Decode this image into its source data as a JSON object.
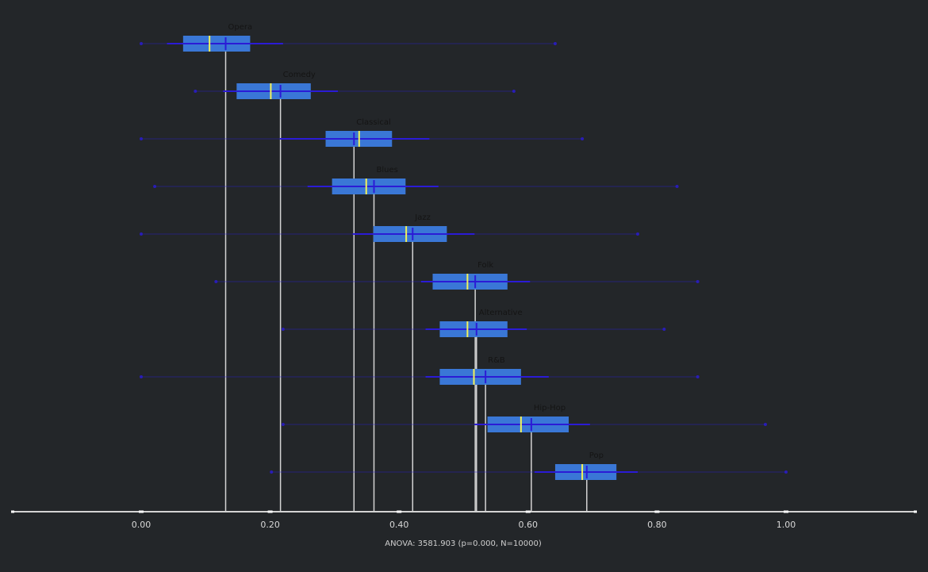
{
  "chart_data": {
    "type": "box",
    "footer_text": "ANOVA: 3581.903 (p=0.000, N=10000)",
    "xlim": [
      -0.2,
      1.2
    ],
    "xticks": [
      0.0,
      0.2,
      0.4,
      0.6,
      0.8,
      1.0
    ],
    "xtick_labels": [
      "0.00",
      "0.20",
      "0.40",
      "0.60",
      "0.80",
      "1.00"
    ],
    "grid": false,
    "colors": {
      "background": "#232629",
      "box": "#3a77d6",
      "median": "#f2f25a",
      "mean": "#2b1bd6",
      "whisker": "#2b1bd6",
      "mean_line": "#d4d4d4",
      "axis": "#d4d4d4"
    },
    "series": [
      {
        "name": "Opera",
        "min": 0.0,
        "max": 0.642,
        "q1": 0.065,
        "median": 0.106,
        "q3": 0.169,
        "mean": 0.131,
        "sd_low": 0.04,
        "sd_high": 0.22
      },
      {
        "name": "Comedy",
        "min": 0.084,
        "max": 0.578,
        "q1": 0.148,
        "median": 0.201,
        "q3": 0.263,
        "mean": 0.216,
        "sd_low": 0.127,
        "sd_high": 0.305
      },
      {
        "name": "Classical",
        "min": 0.0,
        "max": 0.684,
        "q1": 0.286,
        "median": 0.338,
        "q3": 0.389,
        "mean": 0.33,
        "sd_low": 0.215,
        "sd_high": 0.447
      },
      {
        "name": "Blues",
        "min": 0.021,
        "max": 0.831,
        "q1": 0.296,
        "median": 0.349,
        "q3": 0.41,
        "mean": 0.361,
        "sd_low": 0.258,
        "sd_high": 0.461
      },
      {
        "name": "Jazz",
        "min": 0.0,
        "max": 0.77,
        "q1": 0.36,
        "median": 0.411,
        "q3": 0.474,
        "mean": 0.421,
        "sd_low": 0.328,
        "sd_high": 0.517
      },
      {
        "name": "Folk",
        "min": 0.116,
        "max": 0.863,
        "q1": 0.452,
        "median": 0.506,
        "q3": 0.568,
        "mean": 0.518,
        "sd_low": 0.434,
        "sd_high": 0.603
      },
      {
        "name": "Alternative",
        "min": 0.22,
        "max": 0.811,
        "q1": 0.463,
        "median": 0.506,
        "q3": 0.568,
        "mean": 0.52,
        "sd_low": 0.441,
        "sd_high": 0.598
      },
      {
        "name": "R&B",
        "min": 0.0,
        "max": 0.863,
        "q1": 0.463,
        "median": 0.516,
        "q3": 0.589,
        "mean": 0.534,
        "sd_low": 0.441,
        "sd_high": 0.632
      },
      {
        "name": "Hip-Hop",
        "min": 0.22,
        "max": 0.968,
        "q1": 0.537,
        "median": 0.589,
        "q3": 0.663,
        "mean": 0.605,
        "sd_low": 0.517,
        "sd_high": 0.696
      },
      {
        "name": "Pop",
        "min": 0.202,
        "max": 1.0,
        "q1": 0.642,
        "median": 0.684,
        "q3": 0.737,
        "mean": 0.691,
        "sd_low": 0.61,
        "sd_high": 0.77
      }
    ]
  }
}
